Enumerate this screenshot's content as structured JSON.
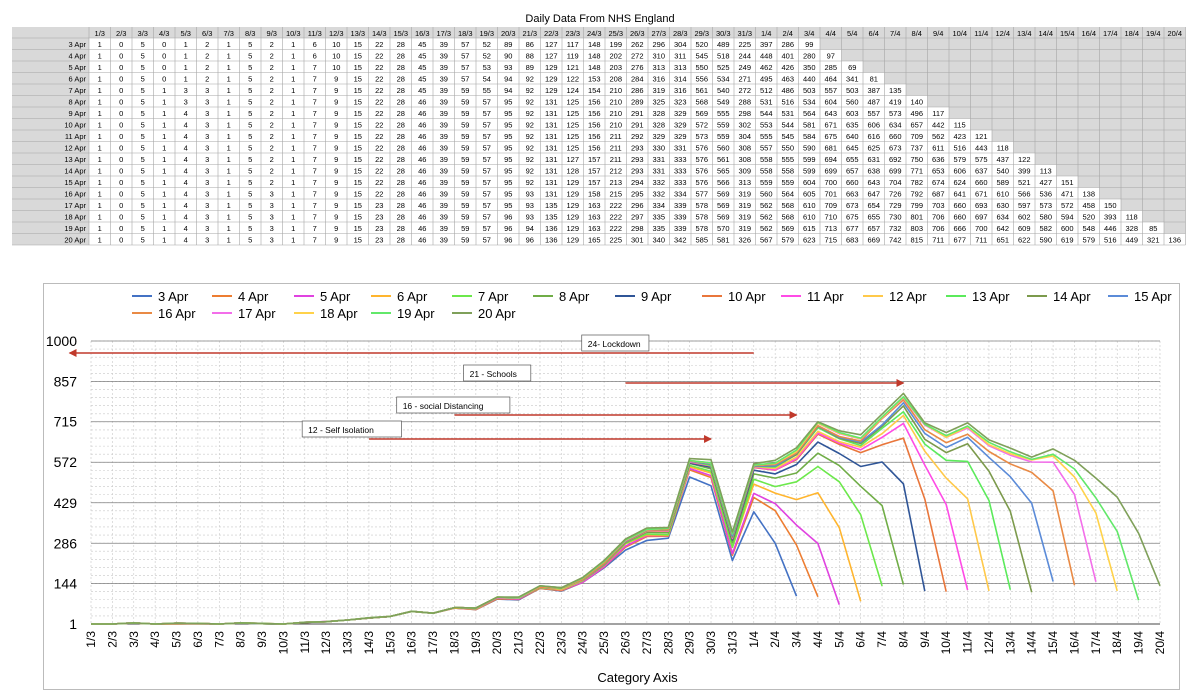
{
  "table": {
    "title": "Daily Data From NHS England",
    "columns": [
      "1/3",
      "2/3",
      "3/3",
      "4/3",
      "5/3",
      "6/3",
      "7/3",
      "8/3",
      "9/3",
      "10/3",
      "11/3",
      "12/3",
      "13/3",
      "14/3",
      "15/3",
      "16/3",
      "17/3",
      "18/3",
      "19/3",
      "20/3",
      "21/3",
      "22/3",
      "23/3",
      "24/3",
      "25/3",
      "26/3",
      "27/3",
      "28/3",
      "29/3",
      "30/3",
      "31/3",
      "1/4",
      "2/4",
      "3/4",
      "4/4",
      "5/4",
      "6/4",
      "7/4",
      "8/4",
      "9/4",
      "10/4",
      "11/4",
      "12/4",
      "13/4",
      "14/4",
      "15/4",
      "16/4",
      "17/4",
      "18/4",
      "19/4",
      "20/4"
    ],
    "rows": [
      {
        "label": "3 Apr",
        "values": [
          1,
          0,
          5,
          0,
          1,
          2,
          1,
          5,
          2,
          1,
          6,
          10,
          15,
          22,
          28,
          45,
          39,
          57,
          52,
          89,
          86,
          127,
          117,
          148,
          199,
          262,
          296,
          304,
          520,
          489,
          225,
          397,
          286,
          99
        ]
      },
      {
        "label": "4 Apr",
        "values": [
          1,
          0,
          5,
          0,
          1,
          2,
          1,
          5,
          2,
          1,
          6,
          10,
          15,
          22,
          28,
          45,
          39,
          57,
          52,
          90,
          88,
          127,
          119,
          148,
          202,
          272,
          310,
          311,
          545,
          518,
          244,
          448,
          401,
          280,
          97
        ]
      },
      {
        "label": "5 Apr",
        "values": [
          1,
          0,
          5,
          0,
          1,
          2,
          1,
          5,
          2,
          1,
          7,
          10,
          15,
          22,
          28,
          45,
          39,
          57,
          53,
          93,
          89,
          129,
          121,
          148,
          203,
          276,
          313,
          313,
          550,
          525,
          249,
          462,
          426,
          350,
          285,
          69
        ]
      },
      {
        "label": "6 Apr",
        "values": [
          1,
          0,
          5,
          0,
          1,
          2,
          1,
          5,
          2,
          1,
          7,
          9,
          15,
          22,
          28,
          45,
          39,
          57,
          54,
          94,
          92,
          129,
          122,
          153,
          208,
          284,
          316,
          314,
          556,
          534,
          271,
          495,
          463,
          440,
          464,
          341,
          81
        ]
      },
      {
        "label": "7 Apr",
        "values": [
          1,
          0,
          5,
          1,
          3,
          3,
          1,
          5,
          2,
          1,
          7,
          9,
          15,
          22,
          28,
          45,
          39,
          59,
          55,
          94,
          92,
          129,
          124,
          154,
          210,
          286,
          319,
          316,
          561,
          540,
          272,
          512,
          486,
          503,
          557,
          503,
          387,
          135
        ]
      },
      {
        "label": "8 Apr",
        "values": [
          1,
          0,
          5,
          1,
          3,
          3,
          1,
          5,
          2,
          1,
          7,
          9,
          15,
          22,
          28,
          46,
          39,
          59,
          57,
          95,
          92,
          131,
          125,
          156,
          210,
          289,
          325,
          323,
          568,
          549,
          288,
          531,
          516,
          534,
          604,
          560,
          487,
          419,
          140
        ]
      },
      {
        "label": "9 Apr",
        "values": [
          1,
          0,
          5,
          1,
          4,
          3,
          1,
          5,
          2,
          1,
          7,
          9,
          15,
          22,
          28,
          46,
          39,
          59,
          57,
          95,
          92,
          131,
          125,
          156,
          210,
          291,
          328,
          329,
          569,
          555,
          298,
          544,
          531,
          564,
          643,
          603,
          557,
          573,
          496,
          117
        ]
      },
      {
        "label": "10 Apr",
        "values": [
          1,
          0,
          5,
          1,
          4,
          3,
          1,
          5,
          2,
          1,
          7,
          9,
          15,
          22,
          28,
          46,
          39,
          59,
          57,
          95,
          92,
          131,
          125,
          156,
          210,
          291,
          328,
          329,
          572,
          559,
          302,
          553,
          544,
          581,
          671,
          635,
          606,
          634,
          657,
          442,
          115
        ]
      },
      {
        "label": "11 Apr",
        "values": [
          1,
          0,
          5,
          1,
          4,
          3,
          1,
          5,
          2,
          1,
          7,
          9,
          15,
          22,
          28,
          46,
          39,
          59,
          57,
          95,
          92,
          131,
          125,
          156,
          211,
          292,
          329,
          329,
          573,
          559,
          304,
          555,
          545,
          584,
          675,
          640,
          616,
          660,
          709,
          562,
          423,
          121
        ]
      },
      {
        "label": "12 Apr",
        "values": [
          1,
          0,
          5,
          1,
          4,
          3,
          1,
          5,
          2,
          1,
          7,
          9,
          15,
          22,
          28,
          46,
          39,
          59,
          57,
          95,
          92,
          131,
          125,
          156,
          211,
          293,
          330,
          331,
          576,
          560,
          308,
          557,
          550,
          590,
          681,
          645,
          625,
          673,
          737,
          611,
          516,
          443,
          118
        ]
      },
      {
        "label": "13 Apr",
        "values": [
          1,
          0,
          5,
          1,
          4,
          3,
          1,
          5,
          2,
          1,
          7,
          9,
          15,
          22,
          28,
          46,
          39,
          59,
          57,
          95,
          92,
          131,
          127,
          157,
          211,
          293,
          331,
          333,
          576,
          561,
          308,
          558,
          555,
          599,
          694,
          655,
          631,
          692,
          750,
          636,
          579,
          575,
          437,
          122
        ]
      },
      {
        "label": "14 Apr",
        "values": [
          1,
          0,
          5,
          1,
          4,
          3,
          1,
          5,
          2,
          1,
          7,
          9,
          15,
          22,
          28,
          46,
          39,
          59,
          57,
          95,
          92,
          131,
          128,
          157,
          212,
          293,
          331,
          333,
          576,
          565,
          309,
          558,
          558,
          599,
          699,
          657,
          638,
          699,
          771,
          653,
          606,
          637,
          540,
          399,
          113
        ]
      },
      {
        "label": "15 Apr",
        "values": [
          1,
          0,
          5,
          1,
          4,
          3,
          1,
          5,
          2,
          1,
          7,
          9,
          15,
          22,
          28,
          46,
          39,
          59,
          57,
          95,
          92,
          131,
          129,
          157,
          213,
          294,
          332,
          333,
          576,
          566,
          313,
          559,
          559,
          604,
          700,
          660,
          643,
          704,
          782,
          674,
          624,
          660,
          589,
          521,
          427,
          151
        ]
      },
      {
        "label": "16 Apr",
        "values": [
          1,
          0,
          5,
          1,
          4,
          3,
          1,
          5,
          3,
          1,
          7,
          9,
          15,
          22,
          28,
          46,
          39,
          59,
          57,
          95,
          93,
          131,
          129,
          158,
          215,
          295,
          332,
          334,
          577,
          569,
          319,
          560,
          564,
          605,
          701,
          663,
          647,
          726,
          792,
          687,
          641,
          671,
          610,
          566,
          536,
          471,
          138
        ]
      },
      {
        "label": "17 Apr",
        "values": [
          1,
          0,
          5,
          1,
          4,
          3,
          1,
          5,
          3,
          1,
          7,
          9,
          15,
          23,
          28,
          46,
          39,
          59,
          57,
          95,
          93,
          135,
          129,
          163,
          222,
          296,
          334,
          339,
          578,
          569,
          319,
          562,
          568,
          610,
          709,
          673,
          654,
          729,
          799,
          703,
          660,
          693,
          630,
          597,
          573,
          572,
          458,
          150
        ]
      },
      {
        "label": "18 Apr",
        "values": [
          1,
          0,
          5,
          1,
          4,
          3,
          1,
          5,
          3,
          1,
          7,
          9,
          15,
          23,
          28,
          46,
          39,
          59,
          57,
          96,
          93,
          135,
          129,
          163,
          222,
          297,
          335,
          339,
          578,
          569,
          319,
          562,
          568,
          610,
          710,
          675,
          655,
          730,
          801,
          706,
          660,
          697,
          634,
          602,
          580,
          594,
          520,
          393,
          118
        ]
      },
      {
        "label": "19 Apr",
        "values": [
          1,
          0,
          5,
          1,
          4,
          3,
          1,
          5,
          3,
          1,
          7,
          9,
          15,
          23,
          28,
          46,
          39,
          59,
          57,
          96,
          94,
          136,
          129,
          163,
          222,
          298,
          335,
          339,
          578,
          570,
          319,
          562,
          569,
          615,
          713,
          677,
          657,
          732,
          803,
          706,
          666,
          700,
          642,
          609,
          582,
          600,
          548,
          446,
          328,
          85
        ]
      },
      {
        "label": "20 Apr",
        "values": [
          1,
          0,
          5,
          1,
          4,
          3,
          1,
          5,
          3,
          1,
          7,
          9,
          15,
          23,
          28,
          46,
          39,
          59,
          57,
          96,
          96,
          136,
          129,
          165,
          225,
          301,
          340,
          342,
          585,
          581,
          326,
          567,
          579,
          623,
          715,
          683,
          669,
          742,
          815,
          711,
          677,
          711,
          651,
          622,
          590,
          619,
          579,
          516,
          449,
          321,
          136
        ]
      }
    ]
  },
  "chart_data": {
    "type": "line",
    "title": "",
    "xlabel": "Category Axis",
    "ylabel": "",
    "y_ticks": [
      1,
      144,
      286,
      429,
      572,
      715,
      857,
      1000
    ],
    "ylim": [
      1,
      1000
    ],
    "legend_position": "top",
    "series_colors": [
      "#4472C4",
      "#ED7D31",
      "#E043E0",
      "#FFB52E",
      "#6CE84B",
      "#70AD47",
      "#2F5597",
      "#E9763B",
      "#FF4BE6",
      "#FFC94A",
      "#5BEA5B",
      "#7C9A4C",
      "#5B8BD8",
      "#E98A45",
      "#F36EEA",
      "#FFD24A",
      "#62E86A",
      "#7FA05A"
    ],
    "annotations": [
      {
        "text": "24- Lockdown",
        "from": "24/3",
        "to": "4/11"
      },
      {
        "text": "21 - Schools",
        "from": "21/3",
        "to": "8/4"
      },
      {
        "text": "16 - social Distancing",
        "from": "16/3",
        "to": "3/4"
      },
      {
        "text": "12 - Self Isolation",
        "from": "12/3",
        "to": "30/3"
      }
    ],
    "annotation_color": "#C0392B"
  }
}
